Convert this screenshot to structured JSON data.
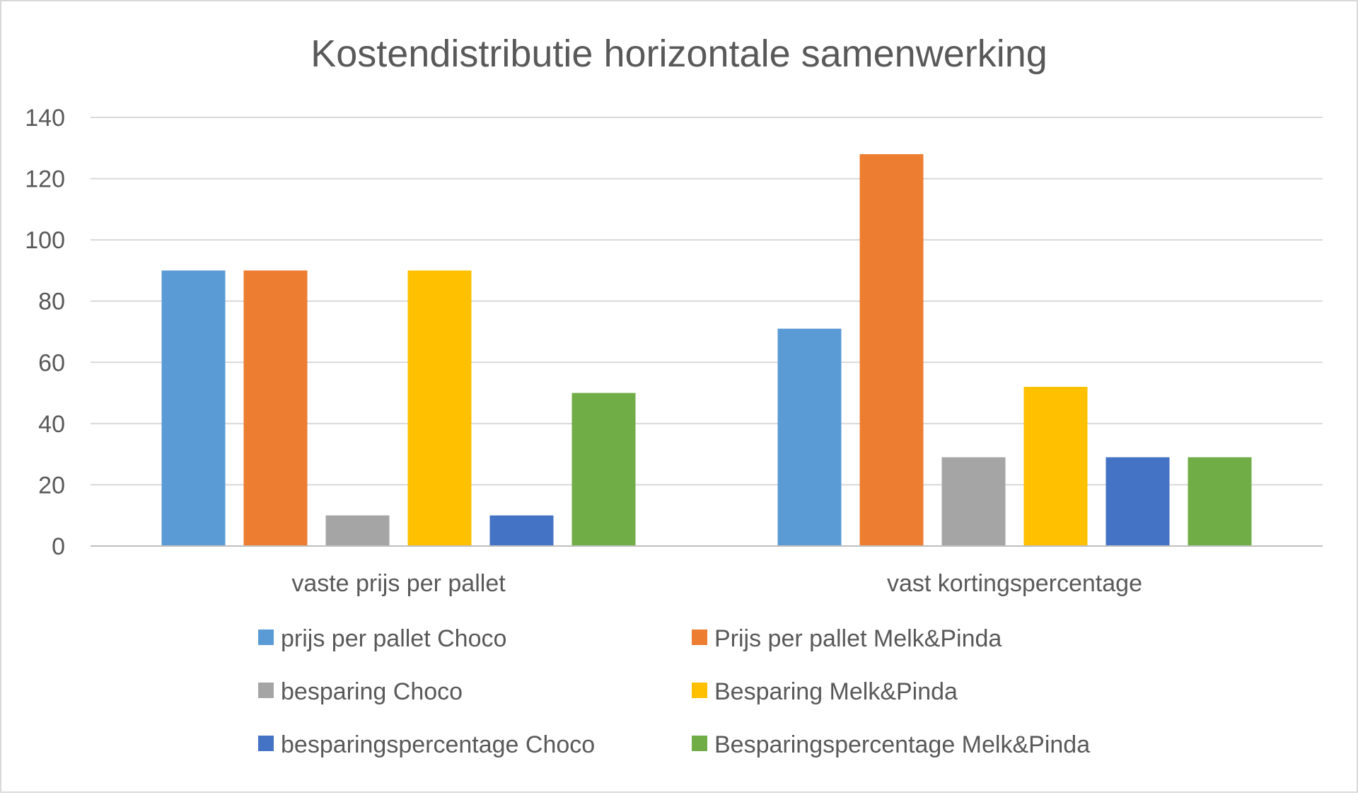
{
  "chart_data": {
    "type": "bar",
    "title": "Kostendistributie horizontale samenwerking",
    "xlabel": "",
    "ylabel": "",
    "ylim": [
      0,
      140
    ],
    "yticks": [
      0,
      20,
      40,
      60,
      80,
      100,
      120,
      140
    ],
    "grid": true,
    "legend_position": "bottom",
    "categories": [
      "vaste prijs per pallet",
      "vast kortingspercentage"
    ],
    "series": [
      {
        "name": "prijs per pallet Choco",
        "color": "#5b9bd5",
        "values": [
          90,
          71
        ]
      },
      {
        "name": "Prijs per pallet Melk&Pinda",
        "color": "#ed7d31",
        "values": [
          90,
          128
        ]
      },
      {
        "name": "besparing Choco",
        "color": "#a5a5a5",
        "values": [
          10,
          29
        ]
      },
      {
        "name": "Besparing Melk&Pinda",
        "color": "#ffc000",
        "values": [
          90,
          52
        ]
      },
      {
        "name": "besparingspercentage Choco",
        "color": "#4472c4",
        "values": [
          10,
          29
        ]
      },
      {
        "name": "Besparingspercentage Melk&Pinda",
        "color": "#70ad47",
        "values": [
          50,
          29
        ]
      }
    ]
  }
}
